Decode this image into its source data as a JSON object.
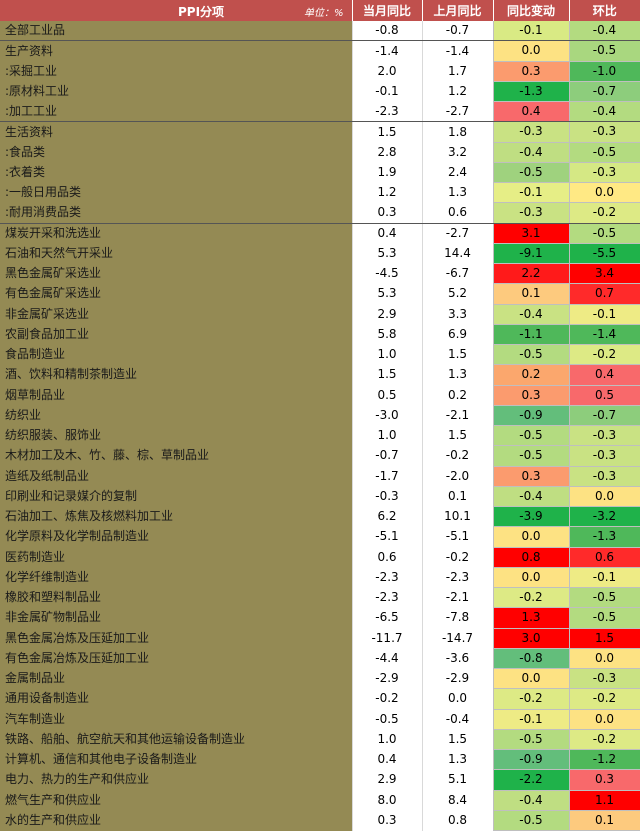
{
  "header": {
    "title": "PPI分项",
    "unit": "单位：%",
    "col_current_yoy": "当月同比",
    "col_prev_yoy": "上月同比",
    "col_yoy_change": "同比变动",
    "col_mom": "环比"
  },
  "colors": {
    "header_bg": "#c0504d",
    "label_bg": "#948a54",
    "deep_green": "#1fb24a",
    "green": "#63be7b",
    "light_green": "#a9d77f",
    "yellow_green": "#d9ea84",
    "yellow": "#ffeb84",
    "orange": "#fba76d",
    "red_orange": "#f8696b",
    "red": "#ff0000"
  },
  "rows": [
    {
      "name": "全部工业品",
      "cur": "-0.8",
      "prev": "-0.7",
      "chg": "-0.1",
      "mom": "-0.4",
      "chg_color": "#d9ea84",
      "mom_color": "#b3db80",
      "group_end": true
    },
    {
      "name": "生产资料",
      "cur": "-1.4",
      "prev": "-1.4",
      "chg": "0.0",
      "mom": "-0.5",
      "chg_color": "#fde283",
      "mom_color": "#a9d77f"
    },
    {
      "name": ":采掘工业",
      "cur": "2.0",
      "prev": "1.7",
      "chg": "0.3",
      "mom": "-1.0",
      "chg_color": "#fb9b6e",
      "mom_color": "#4fb85a"
    },
    {
      "name": ":原材料工业",
      "cur": "-0.1",
      "prev": "1.2",
      "chg": "-1.3",
      "mom": "-0.7",
      "chg_color": "#1fb24a",
      "mom_color": "#8dcd7c"
    },
    {
      "name": ":加工工业",
      "cur": "-2.3",
      "prev": "-2.7",
      "chg": "0.4",
      "mom": "-0.4",
      "chg_color": "#f8696b",
      "mom_color": "#b3db80",
      "group_end": true
    },
    {
      "name": "生活资料",
      "cur": "1.5",
      "prev": "1.8",
      "chg": "-0.3",
      "mom": "-0.3",
      "chg_color": "#c9e283",
      "mom_color": "#c9e283"
    },
    {
      "name": ":食品类",
      "cur": "2.8",
      "prev": "3.2",
      "chg": "-0.4",
      "mom": "-0.5",
      "chg_color": "#bfde82",
      "mom_color": "#b3db80"
    },
    {
      "name": ":衣着类",
      "cur": "1.9",
      "prev": "2.4",
      "chg": "-0.5",
      "mom": "-0.3",
      "chg_color": "#9fd27e",
      "mom_color": "#d5e884"
    },
    {
      "name": ":一般日用品类",
      "cur": "1.2",
      "prev": "1.3",
      "chg": "-0.1",
      "mom": "0.0",
      "chg_color": "#e6ee86",
      "mom_color": "#ffe984"
    },
    {
      "name": ":耐用消费品类",
      "cur": "0.3",
      "prev": "0.6",
      "chg": "-0.3",
      "mom": "-0.2",
      "chg_color": "#c9e283",
      "mom_color": "#ddea85",
      "group_end": true
    },
    {
      "name": "煤炭开采和洗选业",
      "cur": "0.4",
      "prev": "-2.7",
      "chg": "3.1",
      "mom": "-0.5",
      "chg_color": "#ff0000",
      "mom_color": "#b3db80"
    },
    {
      "name": "石油和天然气开采业",
      "cur": "5.3",
      "prev": "14.4",
      "chg": "-9.1",
      "mom": "-5.5",
      "chg_color": "#1fb24a",
      "mom_color": "#1fb24a"
    },
    {
      "name": "黑色金属矿采选业",
      "cur": "-4.5",
      "prev": "-6.7",
      "chg": "2.2",
      "mom": "3.4",
      "chg_color": "#ff1a1a",
      "mom_color": "#ff0000"
    },
    {
      "name": "有色金属矿采选业",
      "cur": "5.3",
      "prev": "5.2",
      "chg": "0.1",
      "mom": "0.7",
      "chg_color": "#fdca7e",
      "mom_color": "#ff2a2a"
    },
    {
      "name": "非金属矿采选业",
      "cur": "2.9",
      "prev": "3.3",
      "chg": "-0.4",
      "mom": "-0.1",
      "chg_color": "#c9e283",
      "mom_color": "#eeeb85"
    },
    {
      "name": "农副食品加工业",
      "cur": "5.8",
      "prev": "6.9",
      "chg": "-1.1",
      "mom": "-1.4",
      "chg_color": "#4fb85a",
      "mom_color": "#4fb85a"
    },
    {
      "name": "食品制造业",
      "cur": "1.0",
      "prev": "1.5",
      "chg": "-0.5",
      "mom": "-0.2",
      "chg_color": "#b3db80",
      "mom_color": "#ddea85"
    },
    {
      "name": "酒、饮料和精制茶制造业",
      "cur": "1.5",
      "prev": "1.3",
      "chg": "0.2",
      "mom": "0.4",
      "chg_color": "#fba76d",
      "mom_color": "#f8696b"
    },
    {
      "name": "烟草制品业",
      "cur": "0.5",
      "prev": "0.2",
      "chg": "0.3",
      "mom": "0.5",
      "chg_color": "#fb9b6e",
      "mom_color": "#f8696b"
    },
    {
      "name": "纺织业",
      "cur": "-3.0",
      "prev": "-2.1",
      "chg": "-0.9",
      "mom": "-0.7",
      "chg_color": "#63be7b",
      "mom_color": "#8dcd7c"
    },
    {
      "name": "纺织服装、服饰业",
      "cur": "1.0",
      "prev": "1.5",
      "chg": "-0.5",
      "mom": "-0.3",
      "chg_color": "#b3db80",
      "mom_color": "#c9e283"
    },
    {
      "name": "木材加工及木、竹、藤、棕、草制品业",
      "cur": "-0.7",
      "prev": "-0.2",
      "chg": "-0.5",
      "mom": "-0.3",
      "chg_color": "#b3db80",
      "mom_color": "#c9e283"
    },
    {
      "name": "造纸及纸制品业",
      "cur": "-1.7",
      "prev": "-2.0",
      "chg": "0.3",
      "mom": "-0.3",
      "chg_color": "#fb9b6e",
      "mom_color": "#c9e283"
    },
    {
      "name": "印刷业和记录媒介的复制",
      "cur": "-0.3",
      "prev": "0.1",
      "chg": "-0.4",
      "mom": "0.0",
      "chg_color": "#bfde82",
      "mom_color": "#fde283"
    },
    {
      "name": "石油加工、炼焦及核燃料加工业",
      "cur": "6.2",
      "prev": "10.1",
      "chg": "-3.9",
      "mom": "-3.2",
      "chg_color": "#1fb24a",
      "mom_color": "#1fb24a"
    },
    {
      "name": "化学原料及化学制品制造业",
      "cur": "-5.1",
      "prev": "-5.1",
      "chg": "0.0",
      "mom": "-1.3",
      "chg_color": "#fde283",
      "mom_color": "#4fb85a"
    },
    {
      "name": "医药制造业",
      "cur": "0.6",
      "prev": "-0.2",
      "chg": "0.8",
      "mom": "0.6",
      "chg_color": "#ff0000",
      "mom_color": "#ff2a2a"
    },
    {
      "name": "化学纤维制造业",
      "cur": "-2.3",
      "prev": "-2.3",
      "chg": "0.0",
      "mom": "-0.1",
      "chg_color": "#fde283",
      "mom_color": "#eeeb85"
    },
    {
      "name": "橡胶和塑料制品业",
      "cur": "-2.3",
      "prev": "-2.1",
      "chg": "-0.2",
      "mom": "-0.5",
      "chg_color": "#ddea85",
      "mom_color": "#b3db80"
    },
    {
      "name": "非金属矿物制品业",
      "cur": "-6.5",
      "prev": "-7.8",
      "chg": "1.3",
      "mom": "-0.5",
      "chg_color": "#ff0000",
      "mom_color": "#b3db80"
    },
    {
      "name": "黑色金属冶炼及压延加工业",
      "cur": "-11.7",
      "prev": "-14.7",
      "chg": "3.0",
      "mom": "1.5",
      "chg_color": "#ff0000",
      "mom_color": "#ff0000"
    },
    {
      "name": "有色金属冶炼及压延加工业",
      "cur": "-4.4",
      "prev": "-3.6",
      "chg": "-0.8",
      "mom": "0.0",
      "chg_color": "#63be7b",
      "mom_color": "#fde283"
    },
    {
      "name": "金属制品业",
      "cur": "-2.9",
      "prev": "-2.9",
      "chg": "0.0",
      "mom": "-0.3",
      "chg_color": "#fde283",
      "mom_color": "#c9e283"
    },
    {
      "name": "通用设备制造业",
      "cur": "-0.2",
      "prev": "0.0",
      "chg": "-0.2",
      "mom": "-0.2",
      "chg_color": "#ddea85",
      "mom_color": "#ddea85"
    },
    {
      "name": "汽车制造业",
      "cur": "-0.5",
      "prev": "-0.4",
      "chg": "-0.1",
      "mom": "0.0",
      "chg_color": "#eeeb85",
      "mom_color": "#fde283"
    },
    {
      "name": "铁路、船舶、航空航天和其他运输设备制造业",
      "cur": "1.0",
      "prev": "1.5",
      "chg": "-0.5",
      "mom": "-0.2",
      "chg_color": "#b3db80",
      "mom_color": "#ddea85"
    },
    {
      "name": "计算机、通信和其他电子设备制造业",
      "cur": "0.4",
      "prev": "1.3",
      "chg": "-0.9",
      "mom": "-1.2",
      "chg_color": "#63be7b",
      "mom_color": "#4fb85a"
    },
    {
      "name": "电力、热力的生产和供应业",
      "cur": "2.9",
      "prev": "5.1",
      "chg": "-2.2",
      "mom": "0.3",
      "chg_color": "#1fb24a",
      "mom_color": "#f8696b"
    },
    {
      "name": "燃气生产和供应业",
      "cur": "8.0",
      "prev": "8.4",
      "chg": "-0.4",
      "mom": "1.1",
      "chg_color": "#bfde82",
      "mom_color": "#ff0000"
    },
    {
      "name": "水的生产和供应业",
      "cur": "0.3",
      "prev": "0.8",
      "chg": "-0.5",
      "mom": "0.1",
      "chg_color": "#b3db80",
      "mom_color": "#fdca7e"
    }
  ]
}
